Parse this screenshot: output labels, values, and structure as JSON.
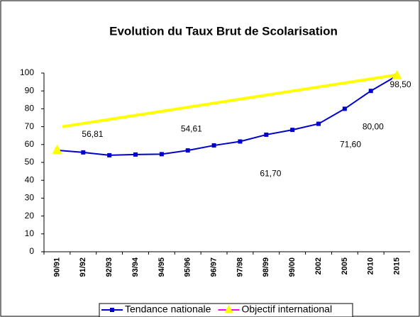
{
  "chart_data": {
    "type": "line",
    "title": "Evolution du Taux Brut de Scolarisation",
    "categories": [
      "90/91",
      "91/92",
      "92/93",
      "93/94",
      "94/95",
      "95/96",
      "96/97",
      "97/98",
      "98/99",
      "99/00",
      "2002",
      "2005",
      "2010",
      "2015"
    ],
    "series": [
      {
        "name": "Tendance nationale",
        "color": "#0000cc",
        "marker": "square",
        "values": [
          56.81,
          55.6,
          54.0,
          54.4,
          54.61,
          56.7,
          59.5,
          61.7,
          65.5,
          68.2,
          71.6,
          80.0,
          90.0,
          98.5
        ],
        "value_labels": [
          "56,81",
          null,
          null,
          null,
          "54,61",
          null,
          null,
          "61,70",
          null,
          null,
          "71,60",
          "80,00",
          null,
          "98,50"
        ]
      },
      {
        "name": "Objectif international",
        "color": "#ff00ff",
        "marker_color": "#ffff00",
        "marker": "triangle",
        "values": [
          56.81,
          null,
          null,
          null,
          null,
          null,
          null,
          null,
          null,
          null,
          null,
          null,
          null,
          98.5
        ]
      }
    ],
    "ylim": [
      0,
      100
    ],
    "yticks": [
      0,
      10,
      20,
      30,
      40,
      50,
      60,
      70,
      80,
      90,
      100
    ],
    "grid": false,
    "legend": "bottom"
  }
}
